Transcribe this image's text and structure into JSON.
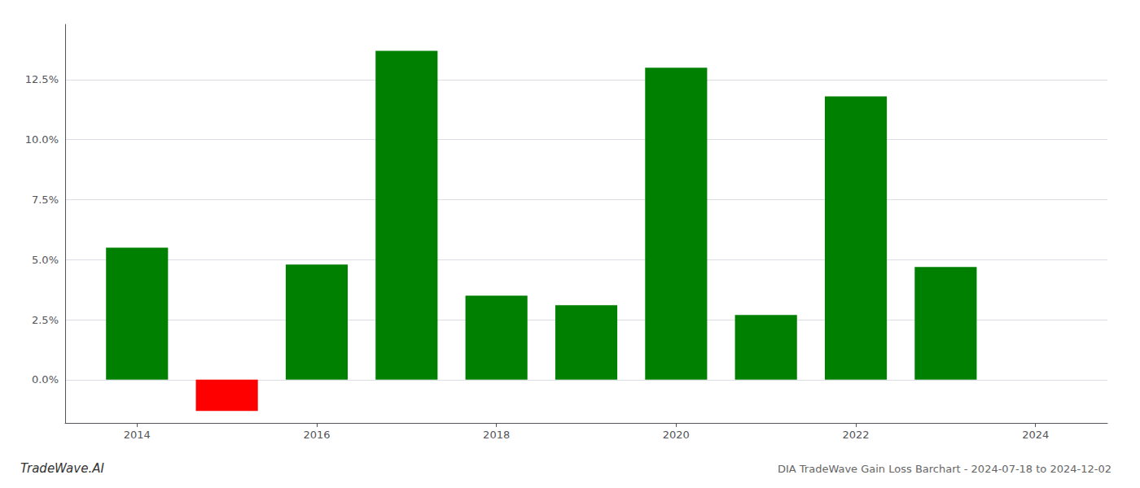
{
  "chart_data": {
    "type": "bar",
    "title": "DIA TradeWave Gain Loss Barchart - 2024-07-18 to 2024-12-02",
    "annotations": [
      "TradeWave.AI"
    ],
    "x": [
      2014,
      2015,
      2016,
      2017,
      2018,
      2019,
      2020,
      2021,
      2022,
      2023
    ],
    "values": [
      0.055,
      -0.013,
      0.048,
      0.137,
      0.035,
      0.031,
      0.13,
      0.027,
      0.118,
      0.047
    ],
    "colors": [
      "#008000",
      "#ff0000",
      "#008000",
      "#008000",
      "#008000",
      "#008000",
      "#008000",
      "#008000",
      "#008000",
      "#008000"
    ],
    "xlim": [
      2013.2,
      2024.8
    ],
    "xticks": [
      2014,
      2016,
      2018,
      2020,
      2022,
      2024
    ],
    "ylim": [
      -0.018,
      0.148
    ],
    "yticks": [
      {
        "value": 0.0,
        "label": "0.0%"
      },
      {
        "value": 0.025,
        "label": "2.5%"
      },
      {
        "value": 0.05,
        "label": "5.0%"
      },
      {
        "value": 0.075,
        "label": "7.5%"
      },
      {
        "value": 0.1,
        "label": "10.0%"
      },
      {
        "value": 0.125,
        "label": "12.5%"
      }
    ],
    "grid": true
  }
}
